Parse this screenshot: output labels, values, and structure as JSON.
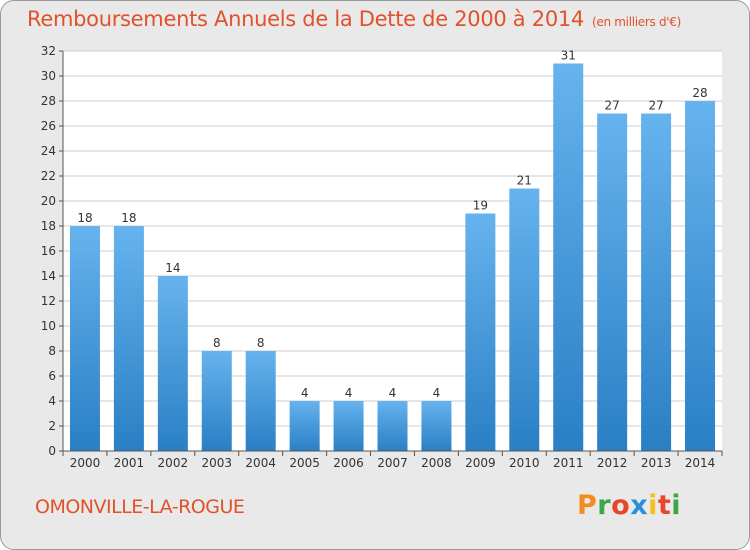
{
  "header": {
    "title": "Remboursements Annuels de la Dette de 2000 à 2014",
    "subtitle": "(en milliers d'€)"
  },
  "footer": {
    "commune": "OMONVILLE-LA-ROGUE",
    "brand_letters": [
      "P",
      "r",
      "o",
      "x",
      "i",
      "t",
      "i"
    ],
    "brand_colors": [
      "#f28c1e",
      "#3aa845",
      "#e8452c",
      "#2a8fd8",
      "#f2c11e",
      "#e8452c",
      "#3aa845"
    ]
  },
  "colors": {
    "bar_light": "#66b3ee",
    "bar_dark": "#2a7fc4",
    "grid": "#cfcfcf",
    "axis": "#555555",
    "title": "#e0522a"
  },
  "chart_data": {
    "type": "bar",
    "title": "Remboursements Annuels de la Dette de 2000 à 2014",
    "subtitle": "(en milliers d'€)",
    "categories": [
      "2000",
      "2001",
      "2002",
      "2003",
      "2004",
      "2005",
      "2006",
      "2007",
      "2008",
      "2009",
      "2010",
      "2011",
      "2012",
      "2013",
      "2014"
    ],
    "values": [
      18,
      18,
      14,
      8,
      8,
      4,
      4,
      4,
      4,
      19,
      21,
      31,
      27,
      27,
      28
    ],
    "ylim": [
      0,
      32
    ],
    "yticks": [
      0,
      2,
      4,
      6,
      8,
      10,
      12,
      14,
      16,
      18,
      20,
      22,
      24,
      26,
      28,
      30,
      32
    ],
    "grid": true,
    "xlabel": "",
    "ylabel": ""
  }
}
